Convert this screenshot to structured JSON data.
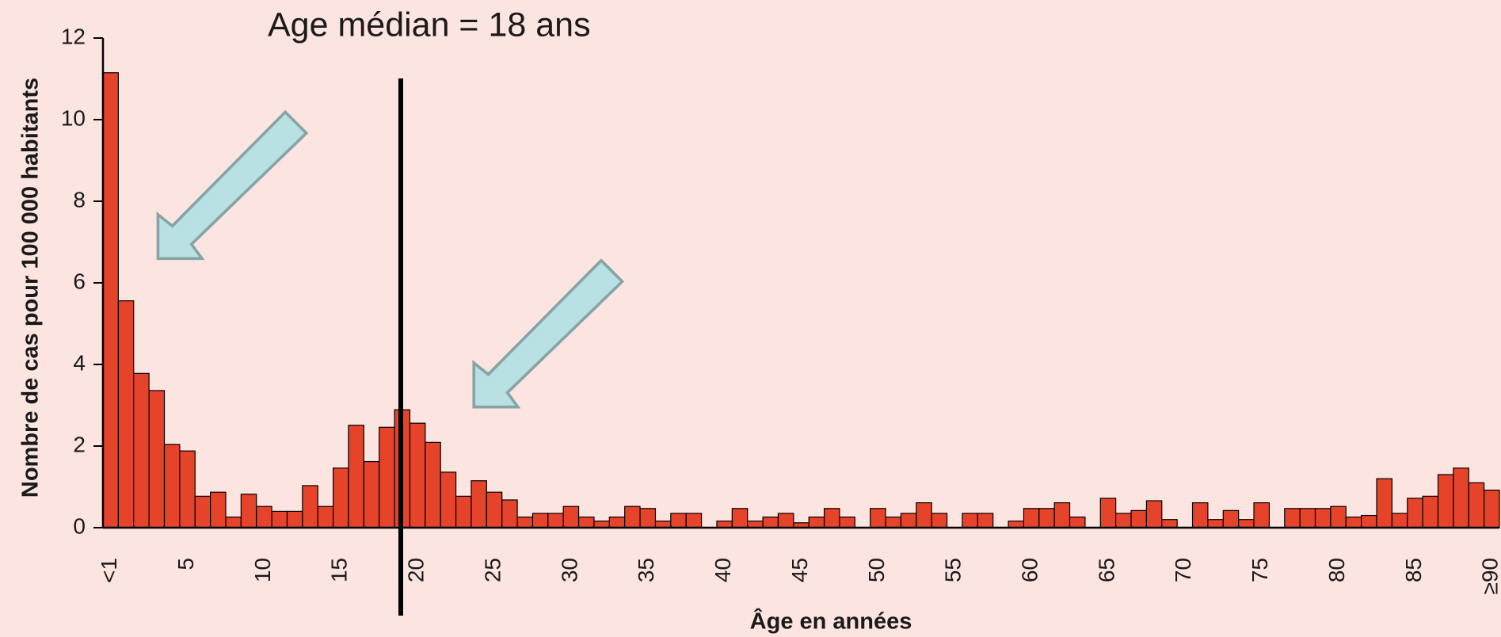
{
  "chart_data": {
    "type": "bar",
    "annotation": "Age médian = 18 ans",
    "x_label": "Âge en années",
    "y_label": "Nombre de cas pour 100 000 habitants",
    "categories": [
      "<1",
      null,
      null,
      null,
      null,
      "5",
      null,
      null,
      null,
      null,
      "10",
      null,
      null,
      null,
      null,
      "15",
      null,
      null,
      null,
      null,
      "20",
      null,
      null,
      null,
      null,
      "25",
      null,
      null,
      null,
      null,
      "30",
      null,
      null,
      null,
      null,
      "35",
      null,
      null,
      null,
      null,
      "40",
      null,
      null,
      null,
      null,
      "45",
      null,
      null,
      null,
      null,
      "50",
      null,
      null,
      null,
      null,
      "55",
      null,
      null,
      null,
      null,
      "60",
      null,
      null,
      null,
      null,
      "65",
      null,
      null,
      null,
      null,
      "70",
      null,
      null,
      null,
      null,
      "75",
      null,
      null,
      null,
      null,
      "80",
      null,
      null,
      null,
      null,
      "85",
      null,
      null,
      null,
      null,
      "≥90"
    ],
    "values": [
      11.15,
      5.56,
      3.78,
      3.36,
      2.04,
      1.88,
      0.77,
      0.87,
      0.26,
      0.82,
      0.52,
      0.4,
      0.4,
      1.03,
      0.52,
      1.46,
      2.51,
      1.62,
      2.46,
      2.89,
      2.56,
      2.09,
      1.36,
      0.77,
      1.15,
      0.87,
      0.68,
      0.26,
      0.35,
      0.35,
      0.52,
      0.26,
      0.16,
      0.26,
      0.52,
      0.47,
      0.16,
      0.35,
      0.35,
      0,
      0.16,
      0.47,
      0.16,
      0.26,
      0.35,
      0.12,
      0.26,
      0.47,
      0.26,
      0,
      0.47,
      0.26,
      0.35,
      0.61,
      0.35,
      0,
      0.35,
      0.35,
      0,
      0.16,
      0.47,
      0.47,
      0.61,
      0.26,
      0,
      0.72,
      0.35,
      0.42,
      0.66,
      0.2,
      0,
      0.61,
      0.2,
      0.42,
      0.2,
      0.61,
      0,
      0.47,
      0.47,
      0.47,
      0.52,
      0.26,
      0.3,
      1.2,
      0.35,
      0.72,
      0.77,
      1.3,
      1.46,
      1.1,
      0.92
    ],
    "color": "#e5432a",
    "ylim": [
      0,
      12
    ],
    "yticks": [
      0,
      2,
      4,
      6,
      8,
      10,
      12
    ]
  }
}
